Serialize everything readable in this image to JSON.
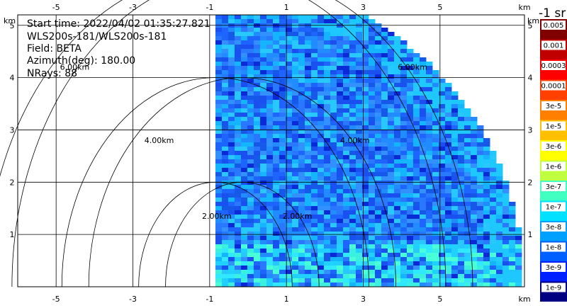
{
  "header": {
    "start_time": "Start time: 2022/04/02 01:35:27.821",
    "instrument": "WLS200s-181/WLS200s-181",
    "field": "Field: BETA",
    "azimuth": "Azimuth(deg): 180.00",
    "nrays": "NRays: 88"
  },
  "colorbar": {
    "title": "-1 sr",
    "labels": [
      "0.005",
      "0.001",
      "0.0003",
      "0.0001",
      "3e-5",
      "1e-5",
      "3e-6",
      "1e-6",
      "3e-7",
      "1e-7",
      "3e-8",
      "1e-8",
      "3e-9",
      "1e-9"
    ],
    "colors": [
      "#800000",
      "#c00000",
      "#ff0000",
      "#ff4000",
      "#ff8000",
      "#ffc000",
      "#ffff00",
      "#c0ff40",
      "#40ffc0",
      "#00e0ff",
      "#00a0ff",
      "#0060ff",
      "#0020ff",
      "#000080"
    ]
  },
  "chart_data": {
    "type": "heatmap",
    "title": "",
    "xlabel": "km",
    "ylabel": "km",
    "xlim": [
      -6,
      7.2
    ],
    "ylim": [
      0,
      5.2
    ],
    "x_ticks": [
      -5,
      -3,
      -1,
      1,
      3,
      5
    ],
    "y_ticks": [
      1,
      2,
      3,
      4,
      5
    ],
    "x_tick_labels": [
      "-5",
      "-3",
      "-1",
      "1",
      "3",
      "5"
    ],
    "y_tick_labels": [
      "1",
      "2",
      "3",
      "4",
      "5"
    ],
    "axis_unit_label": "km",
    "grid": true,
    "range_rings_km": [
      2,
      4,
      6
    ],
    "range_ring_labels": [
      "2.00km",
      "4.00km",
      "6.00km"
    ],
    "sector": {
      "x_min_km": -0.85,
      "max_range_km": 7.2
    }
  }
}
